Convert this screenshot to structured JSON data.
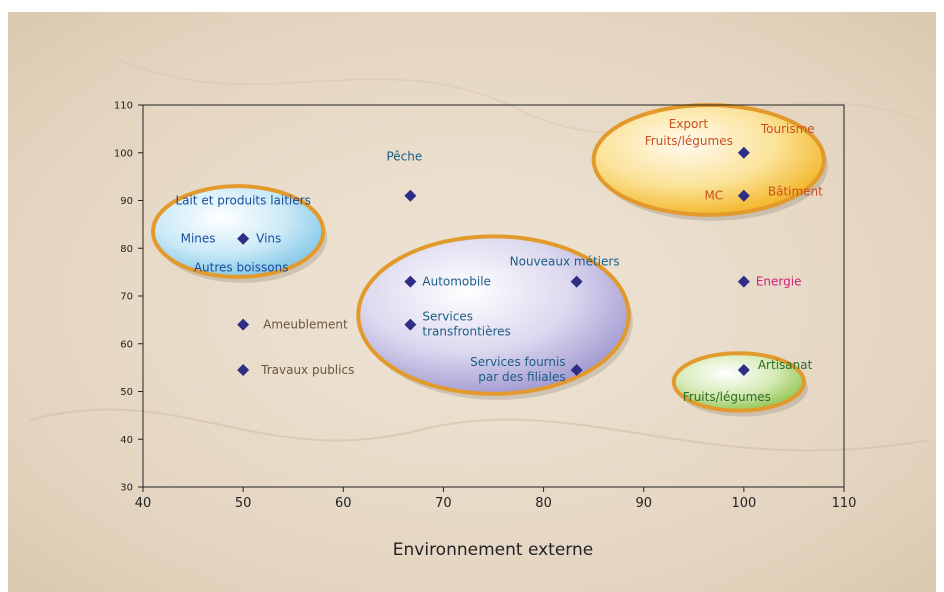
{
  "chart_data": {
    "type": "scatter",
    "title": "",
    "xlabel": "Environnement externe",
    "ylabel": "",
    "xlim": [
      40,
      110
    ],
    "ylim": [
      30,
      110
    ],
    "x_ticks": [
      "40",
      "50",
      "60",
      "70",
      "80",
      "90",
      "100",
      "110"
    ],
    "y_ticks": [
      "30",
      "40",
      "50",
      "60",
      "70",
      "80",
      "90",
      "100",
      "110"
    ],
    "grid": false,
    "points": [
      {
        "x": 50,
        "y": 82,
        "label": "Vins"
      },
      {
        "x": 50,
        "y": 64,
        "label": "Ameublement"
      },
      {
        "x": 50,
        "y": 54.5,
        "label": "Travaux publics"
      },
      {
        "x": 66.7,
        "y": 91,
        "label": "Pêche"
      },
      {
        "x": 66.7,
        "y": 73,
        "label": "Automobile"
      },
      {
        "x": 66.7,
        "y": 64,
        "label": "Services transfrontières"
      },
      {
        "x": 83.3,
        "y": 73,
        "label": "Nouveaux métiers"
      },
      {
        "x": 83.3,
        "y": 54.5,
        "label": "Services fournis par des filiales"
      },
      {
        "x": 100,
        "y": 100,
        "label": "Tourisme"
      },
      {
        "x": 100,
        "y": 91,
        "label": "Bâtiment"
      },
      {
        "x": 100,
        "y": 73,
        "label": "Energie"
      },
      {
        "x": 100,
        "y": 54.5,
        "label": "Artisanat"
      }
    ],
    "annotations": [
      {
        "text": "Lait et produits laitiers",
        "x": 50,
        "y": 90
      },
      {
        "text": "Mines",
        "x": 45.5,
        "y": 82
      },
      {
        "text": "Autres boissons",
        "x": 49.8,
        "y": 76
      },
      {
        "text": "Export",
        "x": 92.5,
        "y": 106
      },
      {
        "text": "Fruits/légumes",
        "x": 94.5,
        "y": 102.5
      },
      {
        "text": "MC",
        "x": 97,
        "y": 91
      },
      {
        "text": "Fruits/légumes",
        "x": 98.3,
        "y": 48.8
      }
    ],
    "clusters": [
      {
        "name": "dairy",
        "cx": 49.5,
        "cy": 83.5,
        "rx": 8.5,
        "ry": 9.5,
        "fill": "#9cd6ee"
      },
      {
        "name": "tech",
        "cx": 75,
        "cy": 66,
        "rx": 13.5,
        "ry": 16.5,
        "fill": "#b9b3dc"
      },
      {
        "name": "export",
        "cx": 96.5,
        "cy": 98.5,
        "rx": 11.5,
        "ry": 11.5,
        "fill": "#f6c842"
      },
      {
        "name": "artisan",
        "cx": 99.5,
        "cy": 52,
        "rx": 6.5,
        "ry": 6,
        "fill": "#a9d26a"
      }
    ],
    "colors": {
      "marker": "#2e2e86",
      "blue_label": "#1a4c9e",
      "teal_label": "#1c5e86",
      "brown_label": "#6b5540",
      "orange_label": "#c8501e",
      "pink_label": "#d0207a",
      "green_label": "#2f6b2a",
      "ellipse_rim": "#e39a2c"
    }
  }
}
